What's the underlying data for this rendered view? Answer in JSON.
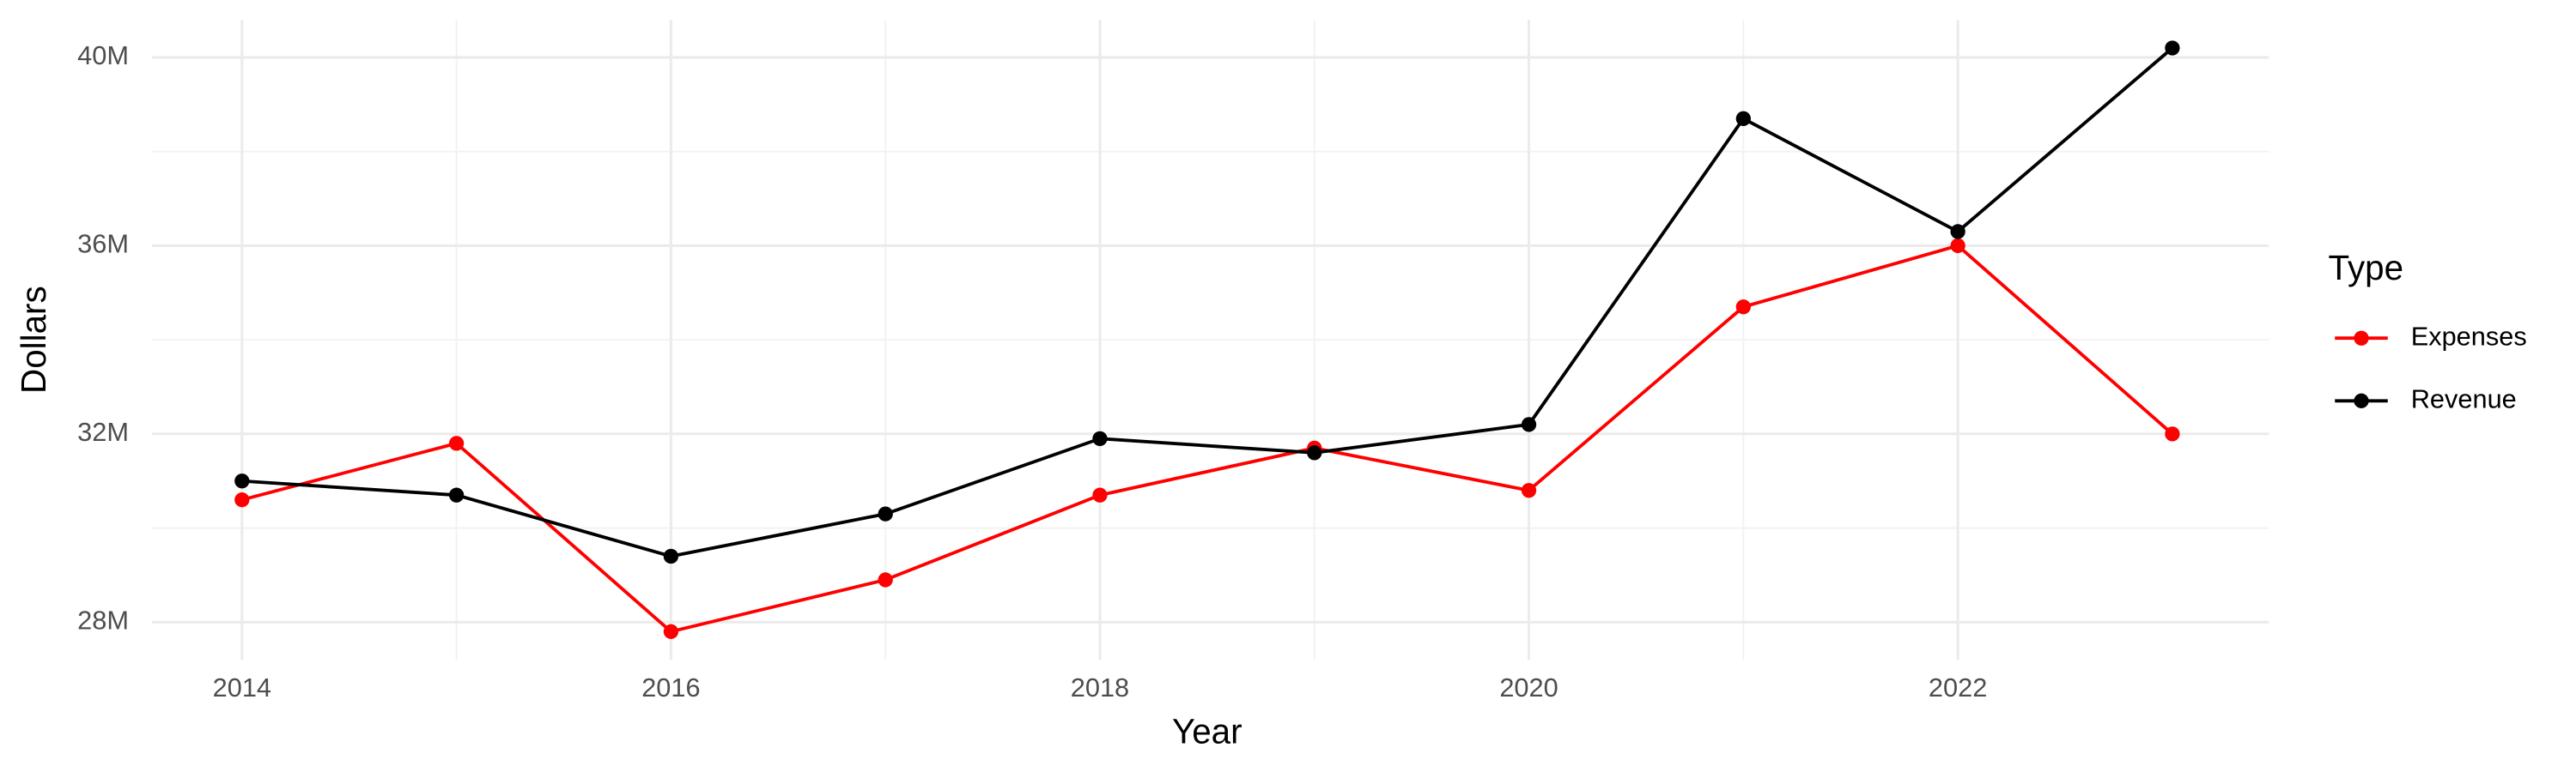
{
  "chart_data": {
    "type": "line",
    "x_label": "Year",
    "y_label": "Dollars",
    "legend_title": "Type",
    "legend": "right",
    "grid": true,
    "x": [
      2014,
      2015,
      2016,
      2017,
      2018,
      2019,
      2020,
      2021,
      2022,
      2023
    ],
    "series": [
      {
        "name": "Expenses",
        "color": "#ff0000",
        "values": [
          30600000,
          31800000,
          27800000,
          28900000,
          30700000,
          31700000,
          30800000,
          34700000,
          36000000,
          32000000
        ]
      },
      {
        "name": "Revenue",
        "color": "#000000",
        "values": [
          31000000,
          30700000,
          29400000,
          30300000,
          31900000,
          31600000,
          32200000,
          38700000,
          36300000,
          40200000
        ]
      }
    ],
    "xlim": [
      2013.58,
      2023.45
    ],
    "xticks": [
      2014,
      2016,
      2018,
      2020,
      2022
    ],
    "ylim": [
      27200000,
      40800000
    ],
    "yticks": [
      {
        "value": 28000000,
        "label": "28M"
      },
      {
        "value": 32000000,
        "label": "32M"
      },
      {
        "value": 36000000,
        "label": "36M"
      },
      {
        "value": 40000000,
        "label": "40M"
      }
    ]
  }
}
